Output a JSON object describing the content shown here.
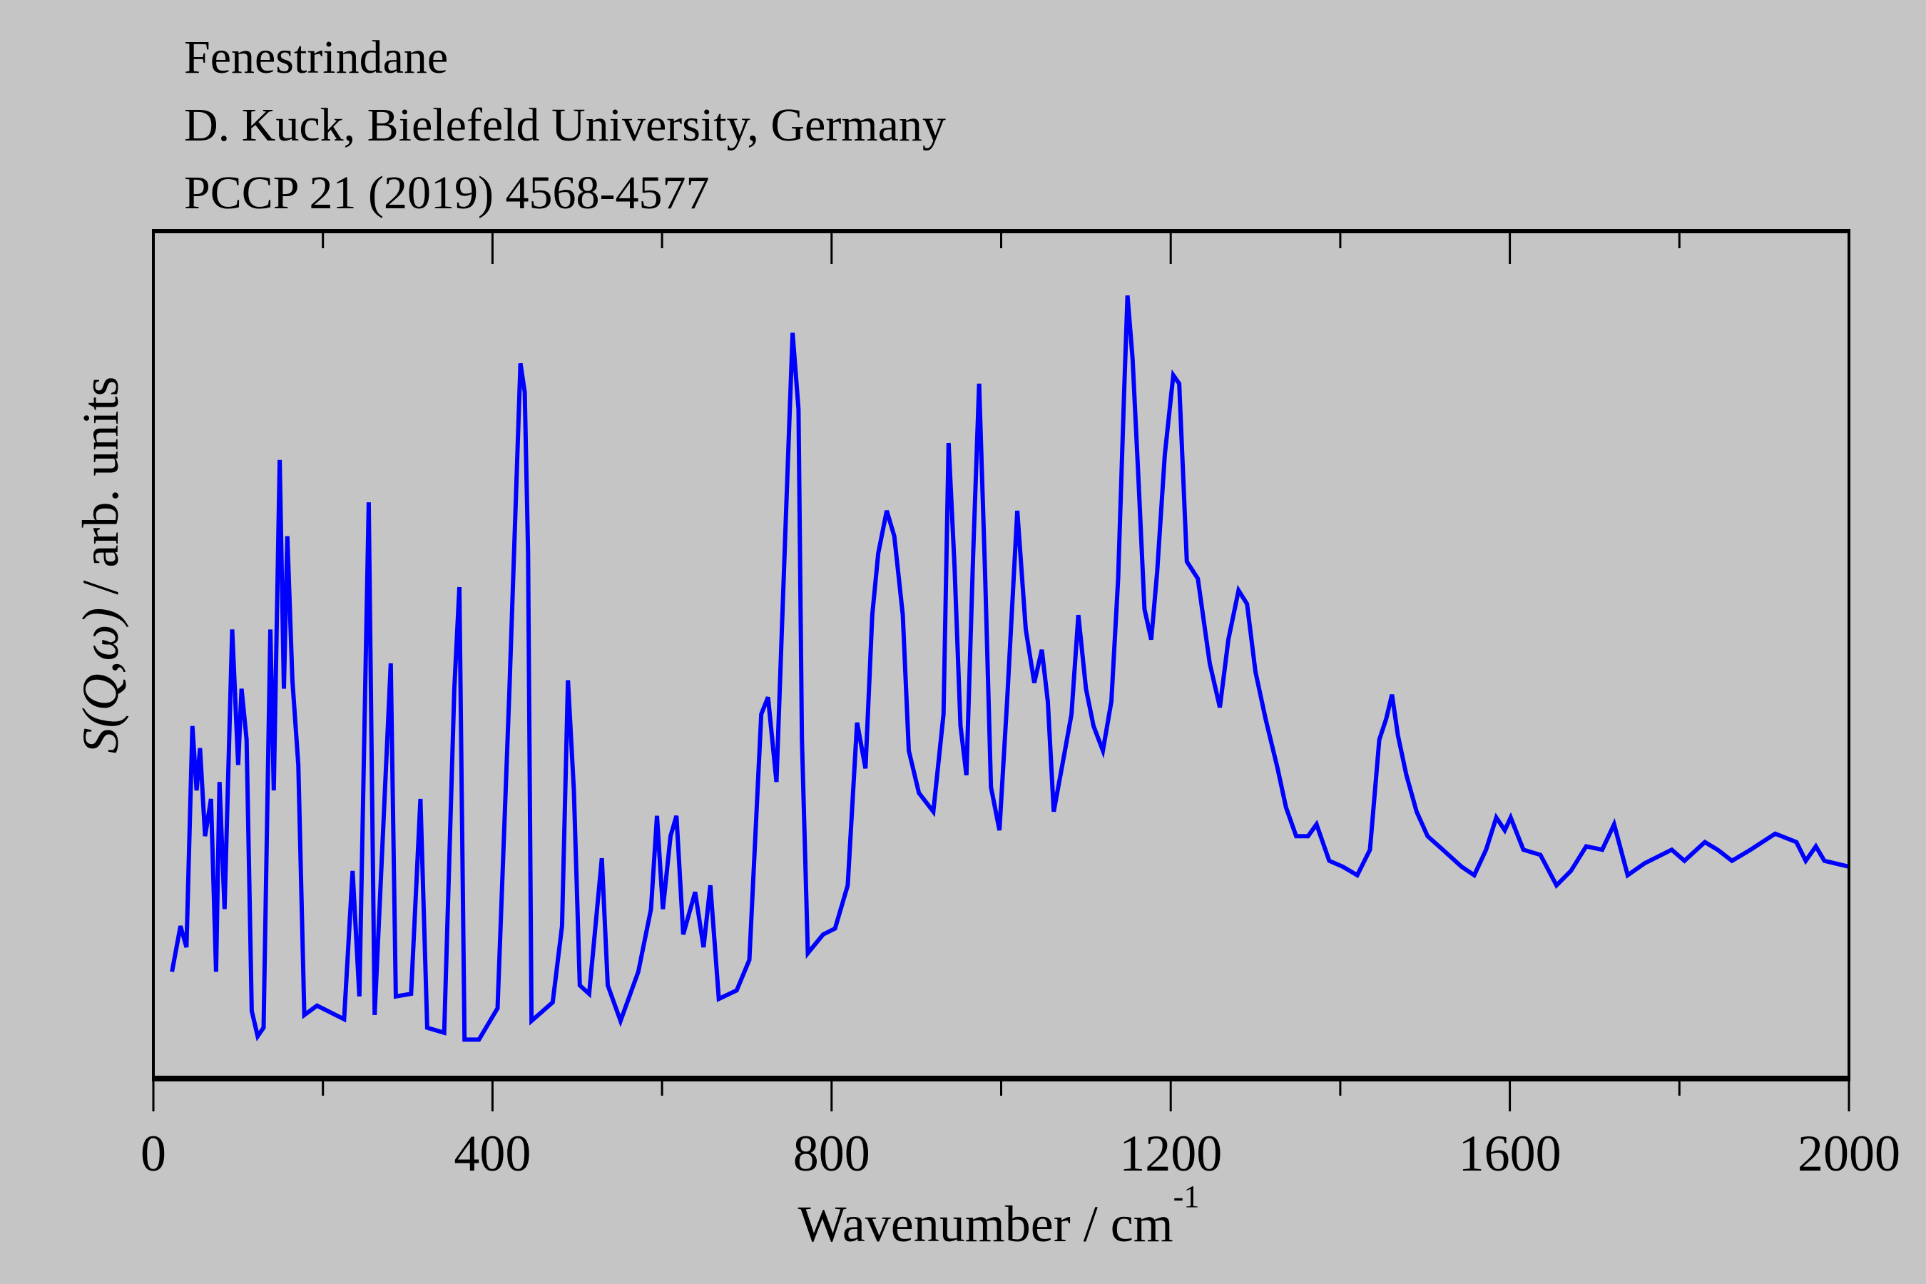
{
  "chart_data": {
    "type": "line",
    "title_lines": [
      "Fenestrindane",
      "D. Kuck, Bielefeld University, Germany",
      "PCCP 21 (2019) 4568-4577"
    ],
    "xlabel": "Wavenumber / cm",
    "xlabel_superscript": "-1",
    "ylabel": {
      "italic": "S(Q,ω)",
      "rest": " / arb. units"
    },
    "xlim": [
      0,
      2000
    ],
    "ylim": [
      0,
      100
    ],
    "x_major_ticks": [
      0,
      400,
      800,
      1200,
      1600,
      2000
    ],
    "x_tick_labels": [
      "0",
      "400",
      "800",
      "1200",
      "1600",
      "2000"
    ],
    "x_minor_ticks": [
      200,
      600,
      1000,
      1400,
      1800
    ],
    "grid": false,
    "colors": {
      "background": "#c5c5c5",
      "series": "#0000ff",
      "axes": "#000000"
    },
    "series": [
      {
        "name": "S(Q,ω)",
        "x": [
          22,
          32,
          39,
          46,
          51,
          55,
          61,
          68,
          74,
          78,
          84,
          93,
          100,
          104,
          110,
          116,
          123,
          130,
          138,
          142,
          149,
          154,
          158,
          164,
          171,
          178,
          193,
          225,
          235,
          243,
          254,
          261,
          280,
          286,
          304,
          315,
          323,
          343,
          355,
          361,
          367,
          384,
          406,
          420,
          433,
          438,
          442,
          446,
          471,
          482,
          489,
          496,
          503,
          514,
          529,
          536,
          551,
          572,
          587,
          594,
          601,
          610,
          617,
          625,
          639,
          649,
          657,
          667,
          688,
          703,
          717,
          725,
          735,
          746,
          754,
          761,
          765,
          772,
          790,
          804,
          819,
          830,
          840,
          848,
          855,
          865,
          874,
          884,
          891,
          903,
          920,
          932,
          938,
          945,
          952,
          959,
          967,
          974,
          981,
          988,
          998,
          1007,
          1019,
          1029,
          1039,
          1048,
          1055,
          1062,
          1074,
          1083,
          1091,
          1100,
          1109,
          1120,
          1130,
          1138,
          1145,
          1149,
          1155,
          1162,
          1169,
          1177,
          1184,
          1193,
          1203,
          1210,
          1219,
          1232,
          1246,
          1258,
          1268,
          1280,
          1290,
          1300,
          1312,
          1326,
          1336,
          1348,
          1362,
          1372,
          1387,
          1403,
          1420,
          1435,
          1446,
          1454,
          1461,
          1468,
          1478,
          1490,
          1503,
          1521,
          1543,
          1558,
          1572,
          1584,
          1594,
          1601,
          1616,
          1636,
          1655,
          1672,
          1690,
          1709,
          1723,
          1739,
          1759,
          1791,
          1806,
          1830,
          1845,
          1862,
          1884,
          1913,
          1938,
          1949,
          1961,
          1971,
          2000
        ],
        "y": [
          12.6,
          18,
          15.5,
          41.6,
          34,
          39,
          28.6,
          33,
          12.6,
          35,
          20,
          53,
          37,
          46,
          40,
          8,
          5,
          6,
          53,
          34,
          73,
          46,
          64,
          47,
          37,
          7.5,
          8.6,
          7,
          24.5,
          9.7,
          68,
          7.5,
          49,
          9.7,
          10,
          33,
          6,
          5.4,
          46,
          58,
          4.6,
          4.6,
          8.3,
          46,
          84.4,
          81,
          62,
          6.8,
          9,
          18,
          47,
          34,
          11,
          10,
          26,
          11,
          6.8,
          12.6,
          20,
          31,
          20,
          28.6,
          31,
          17,
          22,
          15.5,
          22.8,
          9.4,
          10.4,
          14,
          43,
          45,
          35,
          66,
          88,
          79,
          40,
          14.8,
          17,
          17.7,
          22.8,
          42,
          36.6,
          54.7,
          62,
          67,
          64,
          54.7,
          38.7,
          33.7,
          31.5,
          43,
          75,
          60.5,
          41.6,
          35.8,
          62,
          82,
          59.8,
          34.4,
          29.3,
          44.5,
          67,
          53,
          46.7,
          50.6,
          44.5,
          31.5,
          38,
          43,
          54.7,
          46,
          41.6,
          38.7,
          44.5,
          59,
          80.8,
          92.4,
          85,
          70.7,
          55.4,
          51.8,
          59.8,
          73.6,
          83,
          82,
          61,
          59,
          49,
          43.8,
          51.8,
          57.6,
          56,
          48,
          42.4,
          36.6,
          32,
          28.6,
          28.6,
          30,
          25.7,
          25,
          24,
          27,
          40,
          42.4,
          45.3,
          40.5,
          35.8,
          31.5,
          28.6,
          27,
          25,
          24,
          27,
          30.8,
          29.3,
          30.8,
          27,
          26.4,
          22.8,
          24.5,
          27.4,
          27,
          30,
          24,
          25.4,
          27,
          25.7,
          27.9,
          27,
          25.7,
          27,
          28.9,
          27.9,
          25.7,
          27.4,
          25.7,
          25
        ]
      }
    ]
  }
}
